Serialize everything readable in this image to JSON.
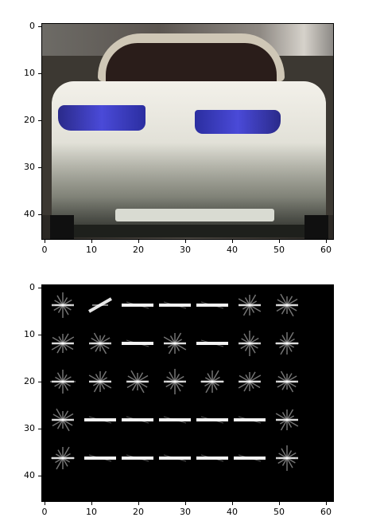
{
  "top_plot": {
    "y_ticks": [
      "0",
      "10",
      "20",
      "30",
      "40"
    ],
    "x_ticks": [
      "0",
      "10",
      "20",
      "30",
      "40",
      "50",
      "60"
    ]
  },
  "bottom_plot": {
    "y_ticks": [
      "0",
      "10",
      "20",
      "30",
      "40"
    ],
    "x_ticks": [
      "0",
      "10",
      "20",
      "30",
      "40",
      "50",
      "60"
    ]
  },
  "colors": {
    "hog_line": "#ffffff",
    "background": "#ffffff"
  }
}
